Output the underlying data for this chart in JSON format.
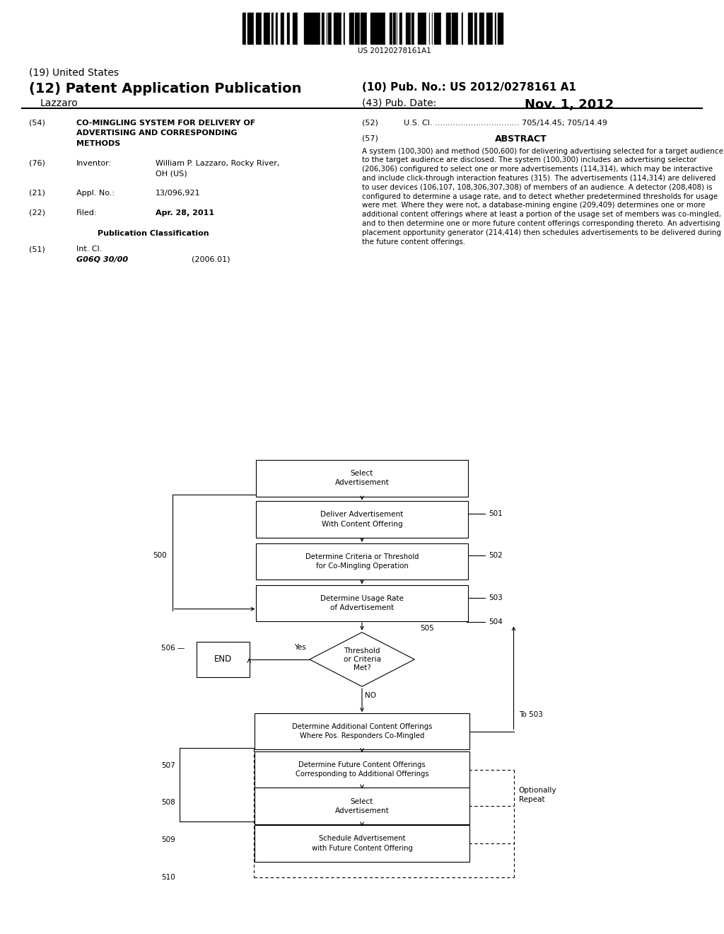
{
  "barcode_text": "US 20120278161A1",
  "title_19": "(19) United States",
  "title_12": "(12) Patent Application Publication",
  "pub_no_label": "(10) Pub. No.:",
  "pub_no_value": "US 2012/0278161 A1",
  "pub_date_label": "(43) Pub. Date:",
  "pub_date_value": "Nov. 1, 2012",
  "inventor_name": "Lazzaro",
  "section_54_line1": "CO-MINGLING SYSTEM FOR DELIVERY OF",
  "section_54_line2": "ADVERTISING AND CORRESPONDING",
  "section_54_line3": "METHODS",
  "section_76_name": "William P. Lazzaro, Rocky River,",
  "section_76_loc": "OH (US)",
  "section_21_text": "13/096,921",
  "section_22_text": "Apr. 28, 2011",
  "section_51_class": "G06Q 30/00",
  "section_51_year": "(2006.01)",
  "section_52_text": "U.S. Cl. ................................. 705/14.45; 705/14.49",
  "abstract_text": "A system (100,300) and method (500,600) for delivering advertising selected for a target audience to the target audience are disclosed. The system (100,300) includes an advertising selector (206,306) configured to select one or more advertisements (114,314), which may be interactive and include click-through interaction features (315). The advertisements (114,314) are delivered to user devices (106,107, 108,306,307,308) of members of an audience. A detector (208,408) is configured to determine a usage rate, and to detect whether predetermined thresholds for usage were met. Where they were not, a database-mining engine (209,409) determines one or more additional content offerings where at least a portion of the usage set of members was co-mingled, and to then determine one or more future content offerings corresponding thereto. An advertising placement opportunity generator (214,414) then schedules advertisements to be delivered during the future content offerings.",
  "bg_color": "#ffffff",
  "text_color": "#000000"
}
